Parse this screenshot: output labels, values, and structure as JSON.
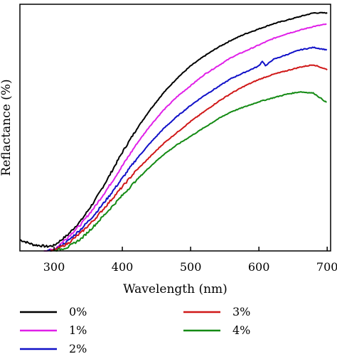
{
  "chart_data": {
    "type": "line",
    "xlabel": "Wavelength (nm)",
    "ylabel": "Reflactance (%)",
    "xlim": [
      250,
      705
    ],
    "ylim": [
      0,
      100
    ],
    "xticks": [
      300,
      400,
      500,
      600,
      700
    ],
    "y_tick_labels_shown": false,
    "grid": false,
    "legend_placement": "below, two columns",
    "series": [
      {
        "name": "0%",
        "color": "#000000",
        "x": [
          250,
          270,
          290,
          300,
          320,
          340,
          360,
          380,
          400,
          420,
          440,
          460,
          480,
          500,
          520,
          540,
          560,
          580,
          600,
          620,
          640,
          660,
          680,
          700
        ],
        "y": [
          4.5,
          2.5,
          1.8,
          2.2,
          6.5,
          12.5,
          20.5,
          30,
          40,
          49,
          57,
          64,
          70,
          75,
          79,
          82.5,
          85.5,
          88,
          90,
          92,
          93.5,
          95,
          96.5,
          96.5
        ]
      },
      {
        "name": "1%",
        "color": "#e020e8",
        "x": [
          285,
          300,
          320,
          340,
          360,
          380,
          400,
          420,
          440,
          460,
          480,
          500,
          520,
          540,
          560,
          580,
          600,
          620,
          640,
          660,
          680,
          700
        ],
        "y": [
          0,
          0.5,
          5.5,
          11,
          18,
          26,
          34.5,
          43,
          50.5,
          57,
          62.5,
          67,
          71.5,
          75,
          78.5,
          81,
          83.5,
          86,
          88,
          89.5,
          91,
          92
        ]
      },
      {
        "name": "2%",
        "color": "#1010c8",
        "x": [
          290,
          300,
          320,
          340,
          360,
          380,
          400,
          420,
          440,
          460,
          480,
          500,
          520,
          540,
          560,
          580,
          600,
          605,
          610,
          620,
          640,
          660,
          680,
          700
        ],
        "y": [
          0,
          0.2,
          4,
          9,
          15,
          22,
          29.5,
          37,
          43.5,
          49.5,
          54.5,
          59,
          63,
          66.5,
          70,
          72.5,
          75,
          77,
          75,
          77.5,
          79.5,
          81.5,
          82.5,
          81.5
        ]
      },
      {
        "name": "3%",
        "color": "#d01818",
        "x": [
          295,
          300,
          320,
          340,
          360,
          380,
          400,
          420,
          440,
          460,
          480,
          500,
          520,
          540,
          560,
          580,
          600,
          620,
          640,
          660,
          680,
          700
        ],
        "y": [
          0,
          0.2,
          3,
          7.5,
          13,
          19.5,
          26,
          32.5,
          38,
          43.5,
          48,
          52.5,
          56.5,
          60.5,
          64,
          67,
          69.5,
          71.5,
          73,
          74.5,
          75.5,
          73.5
        ]
      },
      {
        "name": "4%",
        "color": "#138a13",
        "x": [
          300,
          320,
          340,
          360,
          380,
          400,
          420,
          440,
          460,
          480,
          500,
          520,
          540,
          560,
          580,
          600,
          620,
          640,
          660,
          680,
          700
        ],
        "y": [
          0,
          1.5,
          5,
          10.5,
          16.5,
          22.5,
          28.5,
          34,
          39,
          43,
          46.5,
          50,
          53.5,
          56.5,
          58.5,
          60.5,
          62,
          63.5,
          64.5,
          64,
          60
        ]
      }
    ]
  }
}
